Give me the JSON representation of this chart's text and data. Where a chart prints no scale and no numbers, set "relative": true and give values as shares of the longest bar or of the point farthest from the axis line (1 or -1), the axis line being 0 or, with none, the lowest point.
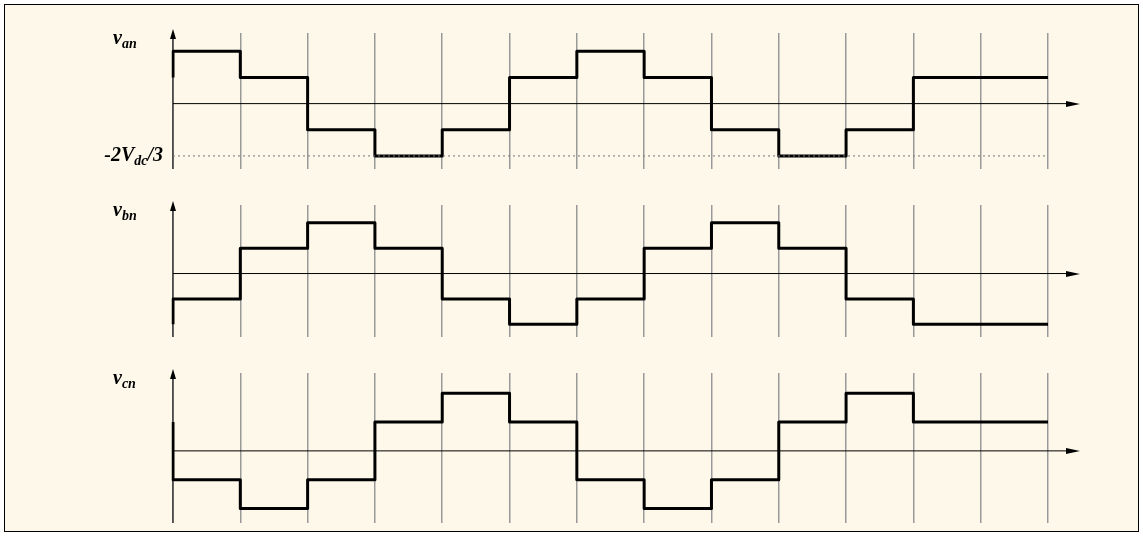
{
  "chart_data": [
    {
      "type": "step",
      "ylabel": "v$_{an}$",
      "relative": true,
      "categories": [
        null,
        null,
        null,
        null,
        null,
        null,
        null,
        null,
        null,
        null,
        null,
        null,
        null,
        null
      ],
      "series": [
        {
          "color": "#000000",
          "values": [
            0.5,
            1,
            0.5,
            -0.5,
            -1,
            -0.5,
            0.5,
            1,
            0.5,
            -0.5,
            -1,
            -0.5,
            0.5,
            0.5
          ]
        }
      ],
      "ref_lines": [
        {
          "axis": "y",
          "value": -1,
          "label": "-2V$_{dc}$/3",
          "line_style": "dotted",
          "color": "#777777"
        }
      ],
      "grid": "x",
      "legend": false,
      "tick_labels": false
    },
    {
      "type": "step",
      "ylabel": "v$_{bn}$",
      "relative": true,
      "categories": [
        null,
        null,
        null,
        null,
        null,
        null,
        null,
        null,
        null,
        null,
        null,
        null,
        null,
        null
      ],
      "series": [
        {
          "color": "#000000",
          "values": [
            -1,
            -0.5,
            0.5,
            1,
            0.5,
            -0.5,
            -1,
            -0.5,
            0.5,
            1,
            0.5,
            -0.5,
            -1,
            -1
          ]
        }
      ],
      "grid": "x",
      "legend": false,
      "tick_labels": false
    },
    {
      "type": "step",
      "ylabel": "v$_{cn}$",
      "relative": true,
      "categories": [
        null,
        null,
        null,
        null,
        null,
        null,
        null,
        null,
        null,
        null,
        null,
        null,
        null,
        null
      ],
      "series": [
        {
          "color": "#000000",
          "values": [
            0.5,
            -0.5,
            -1,
            -0.5,
            0.5,
            1,
            0.5,
            -0.5,
            -1,
            -0.5,
            0.5,
            1,
            0.5,
            0.5
          ]
        }
      ],
      "grid": "x",
      "legend": false,
      "tick_labels": false
    }
  ]
}
